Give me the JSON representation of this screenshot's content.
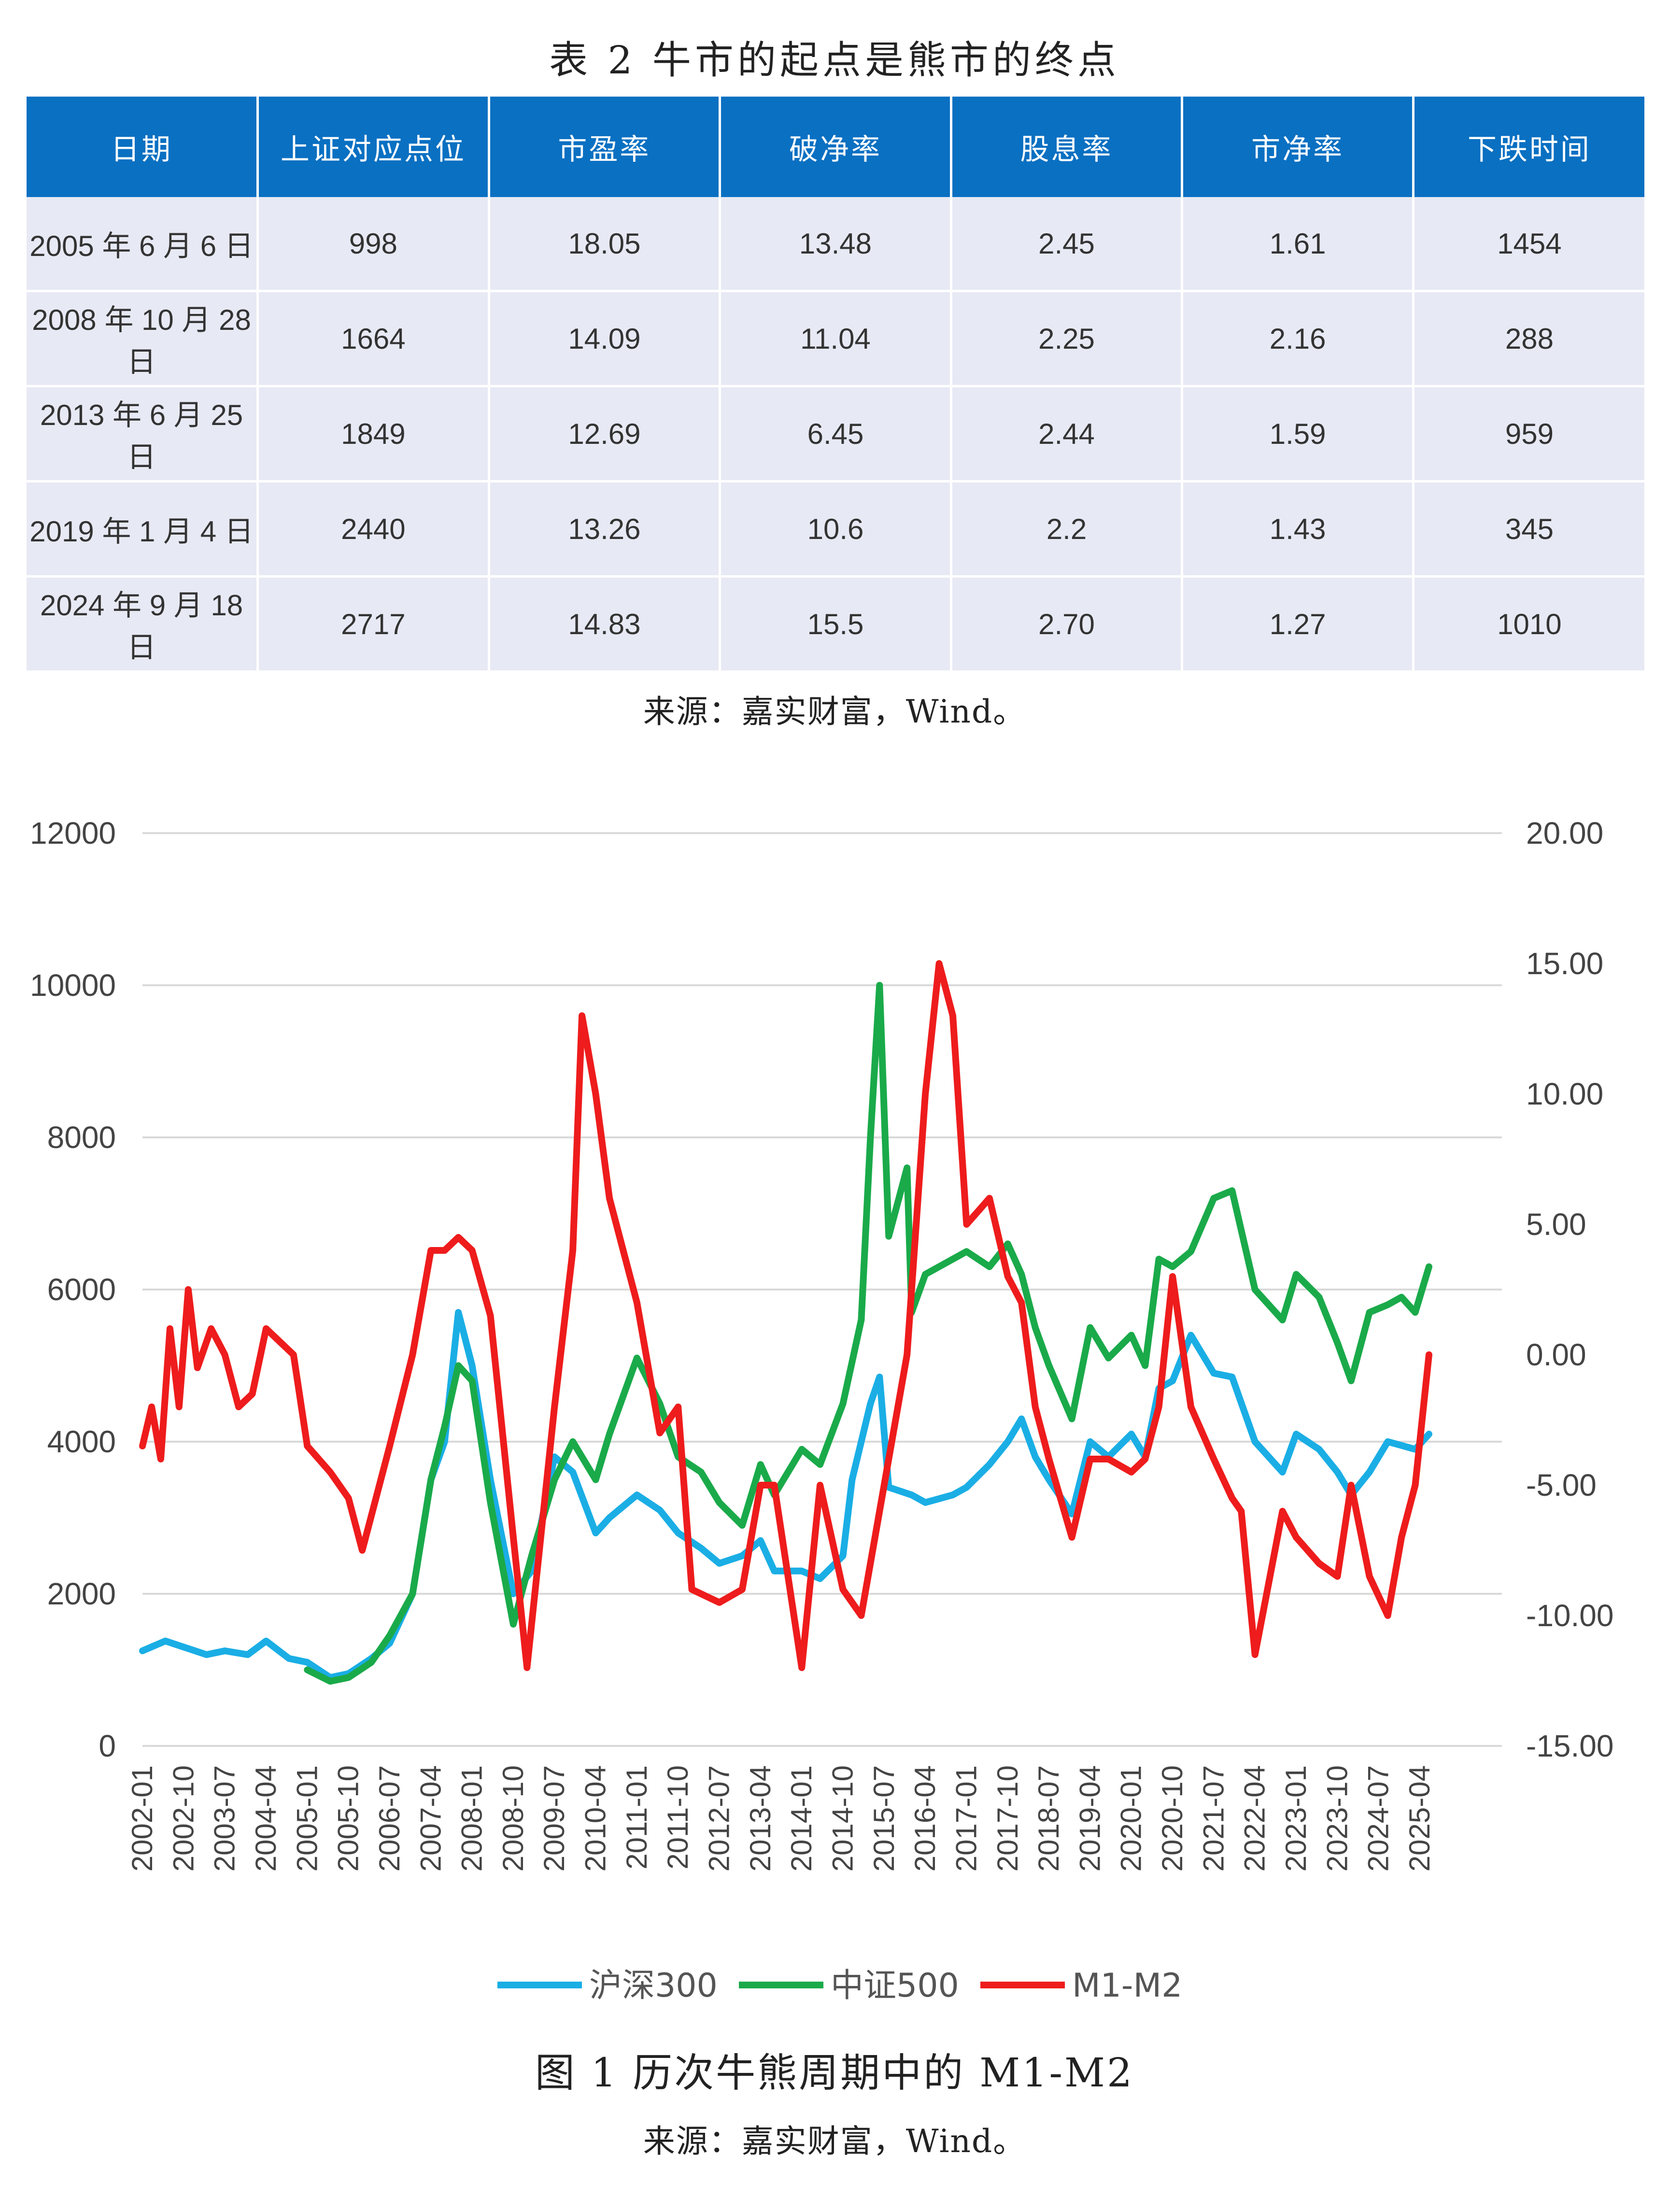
{
  "table": {
    "title": "表 2   牛市的起点是熊市的终点",
    "headers": [
      "日期",
      "上证对应点位",
      "市盈率",
      "破净率",
      "股息率",
      "市净率",
      "下跌时间"
    ],
    "rows": [
      [
        "2005 年 6 月 6 日",
        "998",
        "18.05",
        "13.48",
        "2.45",
        "1.61",
        "1454"
      ],
      [
        "2008 年 10 月 28 日",
        "1664",
        "14.09",
        "11.04",
        "2.25",
        "2.16",
        "288"
      ],
      [
        "2013 年 6 月 25 日",
        "1849",
        "12.69",
        "6.45",
        "2.44",
        "1.59",
        "959"
      ],
      [
        "2019 年 1 月 4 日",
        "2440",
        "13.26",
        "10.6",
        "2.2",
        "1.43",
        "345"
      ],
      [
        "2024 年 9 月 18 日",
        "2717",
        "14.83",
        "15.5",
        "2.70",
        "1.27",
        "1010"
      ]
    ],
    "source": "来源：嘉实财富，Wind。"
  },
  "figure": {
    "title": "图 1 历次牛熊周期中的 M1-M2",
    "source": "来源：嘉实财富，Wind。"
  },
  "chart_data": {
    "type": "line",
    "x_ticks": [
      "2002-01",
      "2002-10",
      "2003-07",
      "2004-04",
      "2005-01",
      "2005-10",
      "2006-07",
      "2007-04",
      "2008-01",
      "2008-10",
      "2009-07",
      "2010-04",
      "2011-01",
      "2011-10",
      "2012-07",
      "2013-04",
      "2014-01",
      "2014-10",
      "2015-07",
      "2016-04",
      "2017-01",
      "2017-10",
      "2018-07",
      "2019-04",
      "2020-01",
      "2020-10",
      "2021-07",
      "2022-04",
      "2023-01",
      "2023-10",
      "2024-07",
      "2025-04"
    ],
    "y_left": {
      "ylim": [
        0,
        12000
      ],
      "ticks": [
        "0",
        "2000",
        "4000",
        "6000",
        "8000",
        "10000",
        "12000"
      ]
    },
    "y_right": {
      "ylim": [
        -15,
        20
      ],
      "ticks": [
        "-15.00",
        "-10.00",
        "-5.00",
        "0.00",
        "5.00",
        "10.00",
        "15.00",
        "20.00"
      ]
    },
    "legend_position": "bottom",
    "series": [
      {
        "name": "沪深300",
        "color": "#1aaee5",
        "axis": "left",
        "points": [
          [
            "2002-01",
            1250
          ],
          [
            "2002-06",
            1380
          ],
          [
            "2002-10",
            1300
          ],
          [
            "2003-03",
            1200
          ],
          [
            "2003-07",
            1250
          ],
          [
            "2003-12",
            1200
          ],
          [
            "2004-04",
            1380
          ],
          [
            "2004-09",
            1150
          ],
          [
            "2005-01",
            1100
          ],
          [
            "2005-06",
            900
          ],
          [
            "2005-10",
            950
          ],
          [
            "2006-03",
            1150
          ],
          [
            "2006-07",
            1350
          ],
          [
            "2006-12",
            2000
          ],
          [
            "2007-04",
            3500
          ],
          [
            "2007-07",
            4000
          ],
          [
            "2007-10",
            5700
          ],
          [
            "2008-01",
            5000
          ],
          [
            "2008-05",
            3500
          ],
          [
            "2008-10",
            2000
          ],
          [
            "2009-02",
            2300
          ],
          [
            "2009-07",
            3800
          ],
          [
            "2009-11",
            3600
          ],
          [
            "2010-04",
            2800
          ],
          [
            "2010-07",
            3000
          ],
          [
            "2011-01",
            3300
          ],
          [
            "2011-06",
            3100
          ],
          [
            "2011-10",
            2800
          ],
          [
            "2012-03",
            2600
          ],
          [
            "2012-07",
            2400
          ],
          [
            "2012-12",
            2500
          ],
          [
            "2013-04",
            2700
          ],
          [
            "2013-07",
            2300
          ],
          [
            "2014-01",
            2300
          ],
          [
            "2014-05",
            2200
          ],
          [
            "2014-10",
            2500
          ],
          [
            "2014-12",
            3500
          ],
          [
            "2015-04",
            4500
          ],
          [
            "2015-06",
            4850
          ],
          [
            "2015-08",
            3400
          ],
          [
            "2016-01",
            3300
          ],
          [
            "2016-04",
            3200
          ],
          [
            "2016-10",
            3300
          ],
          [
            "2017-01",
            3400
          ],
          [
            "2017-06",
            3700
          ],
          [
            "2017-10",
            4000
          ],
          [
            "2018-01",
            4300
          ],
          [
            "2018-04",
            3800
          ],
          [
            "2018-07",
            3500
          ],
          [
            "2018-12",
            3050
          ],
          [
            "2019-04",
            4000
          ],
          [
            "2019-08",
            3800
          ],
          [
            "2020-01",
            4100
          ],
          [
            "2020-04",
            3800
          ],
          [
            "2020-07",
            4700
          ],
          [
            "2020-10",
            4800
          ],
          [
            "2021-02",
            5400
          ],
          [
            "2021-07",
            4900
          ],
          [
            "2021-11",
            4850
          ],
          [
            "2022-04",
            4000
          ],
          [
            "2022-10",
            3600
          ],
          [
            "2023-01",
            4100
          ],
          [
            "2023-06",
            3900
          ],
          [
            "2023-10",
            3600
          ],
          [
            "2024-01",
            3300
          ],
          [
            "2024-05",
            3600
          ],
          [
            "2024-09",
            4000
          ],
          [
            "2024-12",
            3950
          ],
          [
            "2025-03",
            3900
          ],
          [
            "2025-06",
            4100
          ]
        ]
      },
      {
        "name": "中证500",
        "color": "#1aaa4a",
        "axis": "left",
        "points": [
          [
            "2005-01",
            1000
          ],
          [
            "2005-06",
            850
          ],
          [
            "2005-10",
            900
          ],
          [
            "2006-03",
            1100
          ],
          [
            "2006-07",
            1450
          ],
          [
            "2006-12",
            2000
          ],
          [
            "2007-04",
            3500
          ],
          [
            "2007-07",
            4200
          ],
          [
            "2007-10",
            5000
          ],
          [
            "2008-01",
            4800
          ],
          [
            "2008-05",
            3200
          ],
          [
            "2008-10",
            1600
          ],
          [
            "2009-02",
            2500
          ],
          [
            "2009-07",
            3500
          ],
          [
            "2009-11",
            4000
          ],
          [
            "2010-04",
            3500
          ],
          [
            "2010-07",
            4100
          ],
          [
            "2011-01",
            5100
          ],
          [
            "2011-06",
            4500
          ],
          [
            "2011-10",
            3800
          ],
          [
            "2012-03",
            3600
          ],
          [
            "2012-07",
            3200
          ],
          [
            "2012-12",
            2900
          ],
          [
            "2013-04",
            3700
          ],
          [
            "2013-07",
            3300
          ],
          [
            "2014-01",
            3900
          ],
          [
            "2014-05",
            3700
          ],
          [
            "2014-10",
            4500
          ],
          [
            "2015-02",
            5600
          ],
          [
            "2015-04",
            8000
          ],
          [
            "2015-06",
            10000
          ],
          [
            "2015-08",
            6700
          ],
          [
            "2015-12",
            7600
          ],
          [
            "2016-01",
            5700
          ],
          [
            "2016-04",
            6200
          ],
          [
            "2016-10",
            6400
          ],
          [
            "2017-01",
            6500
          ],
          [
            "2017-06",
            6300
          ],
          [
            "2017-10",
            6600
          ],
          [
            "2018-01",
            6200
          ],
          [
            "2018-04",
            5500
          ],
          [
            "2018-07",
            5000
          ],
          [
            "2018-12",
            4300
          ],
          [
            "2019-04",
            5500
          ],
          [
            "2019-08",
            5100
          ],
          [
            "2020-01",
            5400
          ],
          [
            "2020-04",
            5000
          ],
          [
            "2020-07",
            6400
          ],
          [
            "2020-10",
            6300
          ],
          [
            "2021-02",
            6500
          ],
          [
            "2021-07",
            7200
          ],
          [
            "2021-11",
            7300
          ],
          [
            "2022-04",
            6000
          ],
          [
            "2022-10",
            5600
          ],
          [
            "2023-01",
            6200
          ],
          [
            "2023-06",
            5900
          ],
          [
            "2023-10",
            5300
          ],
          [
            "2024-01",
            4800
          ],
          [
            "2024-05",
            5700
          ],
          [
            "2024-09",
            5800
          ],
          [
            "2024-12",
            5900
          ],
          [
            "2025-03",
            5700
          ],
          [
            "2025-06",
            6300
          ]
        ]
      },
      {
        "name": "M1-M2",
        "color": "#ee1c1c",
        "axis": "right",
        "points": [
          [
            "2002-01",
            -3.5
          ],
          [
            "2002-03",
            -2
          ],
          [
            "2002-05",
            -4
          ],
          [
            "2002-07",
            1
          ],
          [
            "2002-09",
            -2
          ],
          [
            "2002-11",
            2.5
          ],
          [
            "2003-01",
            -0.5
          ],
          [
            "2003-04",
            1
          ],
          [
            "2003-07",
            0
          ],
          [
            "2003-10",
            -2
          ],
          [
            "2004-01",
            -1.5
          ],
          [
            "2004-04",
            1
          ],
          [
            "2004-07",
            0.5
          ],
          [
            "2004-10",
            0
          ],
          [
            "2005-01",
            -3.5
          ],
          [
            "2005-06",
            -4.5
          ],
          [
            "2005-10",
            -5.5
          ],
          [
            "2006-01",
            -7.5
          ],
          [
            "2006-04",
            -5.5
          ],
          [
            "2006-07",
            -3.5
          ],
          [
            "2006-12",
            0
          ],
          [
            "2007-04",
            4
          ],
          [
            "2007-07",
            4
          ],
          [
            "2007-10",
            4.5
          ],
          [
            "2008-01",
            4
          ],
          [
            "2008-05",
            1.5
          ],
          [
            "2008-10",
            -7
          ],
          [
            "2009-01",
            -12
          ],
          [
            "2009-07",
            -2
          ],
          [
            "2009-11",
            4
          ],
          [
            "2010-01",
            13
          ],
          [
            "2010-04",
            10
          ],
          [
            "2010-07",
            6
          ],
          [
            "2011-01",
            2
          ],
          [
            "2011-06",
            -3
          ],
          [
            "2011-10",
            -2
          ],
          [
            "2012-01",
            -9
          ],
          [
            "2012-07",
            -9.5
          ],
          [
            "2012-12",
            -9
          ],
          [
            "2013-04",
            -5
          ],
          [
            "2013-07",
            -5
          ],
          [
            "2014-01",
            -12
          ],
          [
            "2014-05",
            -5
          ],
          [
            "2014-10",
            -9
          ],
          [
            "2015-02",
            -10
          ],
          [
            "2015-06",
            -6
          ],
          [
            "2015-12",
            0
          ],
          [
            "2016-04",
            10
          ],
          [
            "2016-07",
            15
          ],
          [
            "2016-10",
            13
          ],
          [
            "2017-01",
            5
          ],
          [
            "2017-06",
            6
          ],
          [
            "2017-10",
            3
          ],
          [
            "2018-01",
            2
          ],
          [
            "2018-04",
            -2
          ],
          [
            "2018-07",
            -4
          ],
          [
            "2018-12",
            -7
          ],
          [
            "2019-04",
            -4
          ],
          [
            "2019-08",
            -4
          ],
          [
            "2020-01",
            -4.5
          ],
          [
            "2020-04",
            -4
          ],
          [
            "2020-07",
            -2
          ],
          [
            "2020-10",
            3
          ],
          [
            "2021-02",
            -2
          ],
          [
            "2021-07",
            -4
          ],
          [
            "2021-11",
            -5.5
          ],
          [
            "2022-01",
            -6
          ],
          [
            "2022-04",
            -11.5
          ],
          [
            "2022-10",
            -6
          ],
          [
            "2023-01",
            -7
          ],
          [
            "2023-06",
            -8
          ],
          [
            "2023-10",
            -8.5
          ],
          [
            "2024-01",
            -5
          ],
          [
            "2024-05",
            -8.5
          ],
          [
            "2024-09",
            -10
          ],
          [
            "2024-12",
            -7
          ],
          [
            "2025-03",
            -5
          ],
          [
            "2025-06",
            0
          ]
        ]
      }
    ]
  }
}
